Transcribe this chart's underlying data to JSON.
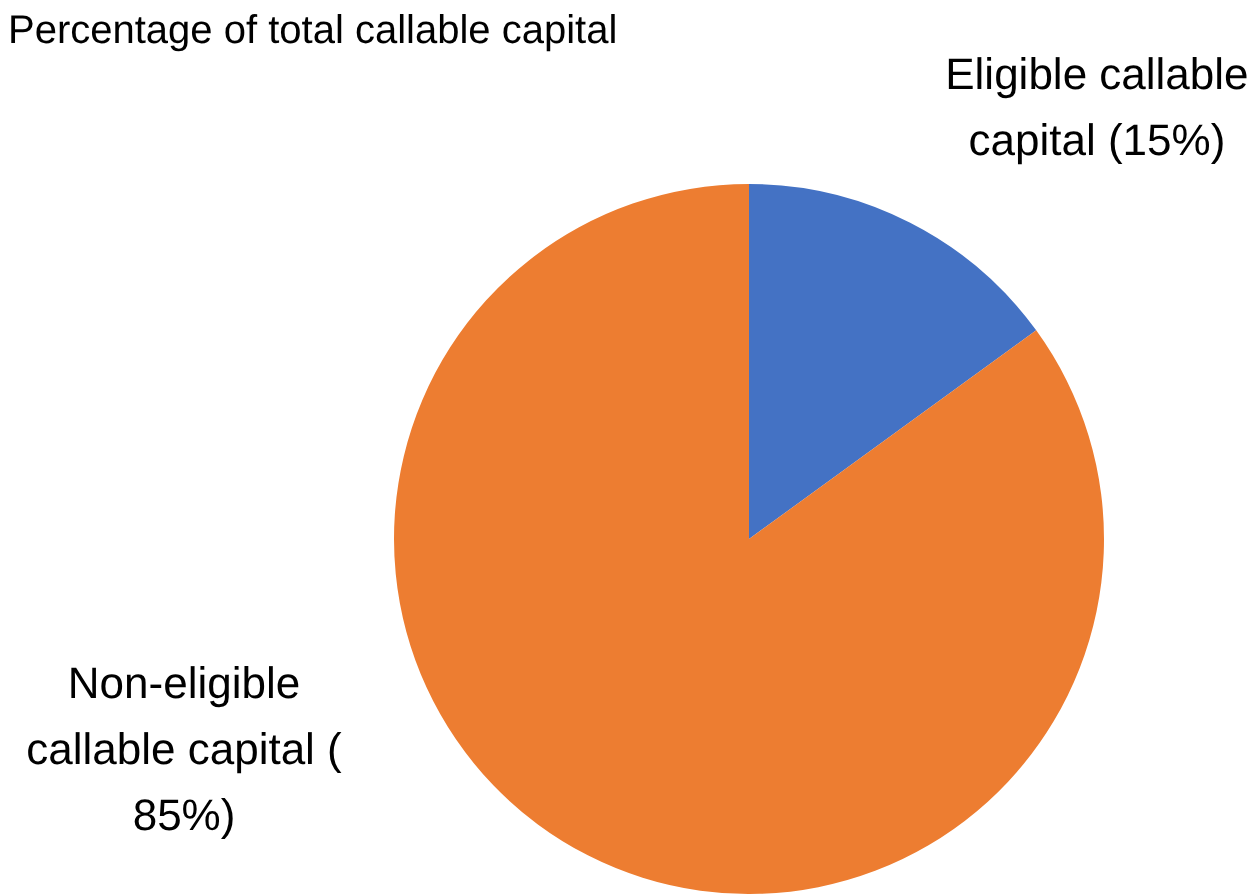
{
  "chart_data": {
    "type": "pie",
    "title": "Percentage of total callable capital",
    "categories": [
      "Eligible callable capital (15%)",
      "Non-eligible callable capital ( 85%)"
    ],
    "values": [
      15,
      85
    ],
    "colors": [
      "#4472c4",
      "#ed7d31"
    ],
    "legend": false
  }
}
